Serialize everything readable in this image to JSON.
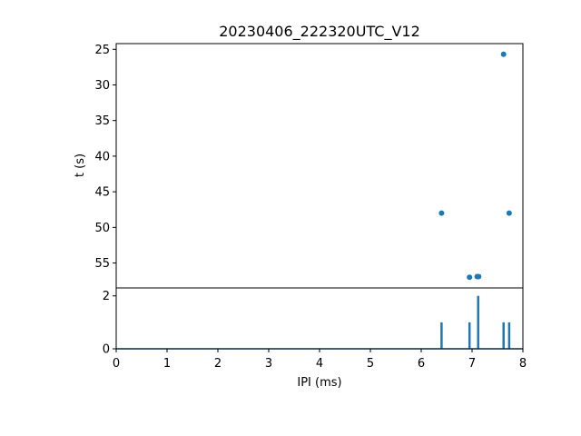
{
  "chart_data": [
    {
      "type": "scatter",
      "title": "20230406_222320UTC_V12",
      "xlabel": "",
      "ylabel": "t (s)",
      "xlim": [
        0,
        8
      ],
      "ylim": [
        58.5,
        24.2
      ],
      "y_inverted": true,
      "grid": false,
      "yticks": [
        "25",
        "30",
        "35",
        "40",
        "45",
        "50",
        "55"
      ],
      "color": "#1f77b4",
      "points": [
        {
          "x": 7.62,
          "y": 25.7
        },
        {
          "x": 6.4,
          "y": 48.0
        },
        {
          "x": 7.73,
          "y": 48.0
        },
        {
          "x": 6.95,
          "y": 57.0
        },
        {
          "x": 7.1,
          "y": 56.9
        },
        {
          "x": 7.13,
          "y": 56.9
        }
      ]
    },
    {
      "type": "bar",
      "title": "",
      "xlabel": "IPI (ms)",
      "ylabel": "",
      "xlim": [
        0,
        8
      ],
      "ylim": [
        0,
        2.3
      ],
      "grid": false,
      "xticks": [
        "0",
        "1",
        "2",
        "3",
        "4",
        "5",
        "6",
        "7",
        "8"
      ],
      "yticks": [
        "0",
        "2"
      ],
      "color": "#1f77b4",
      "x": [
        6.4,
        6.95,
        7.12,
        7.62,
        7.73
      ],
      "values": [
        1,
        1,
        2,
        1,
        1
      ]
    }
  ]
}
